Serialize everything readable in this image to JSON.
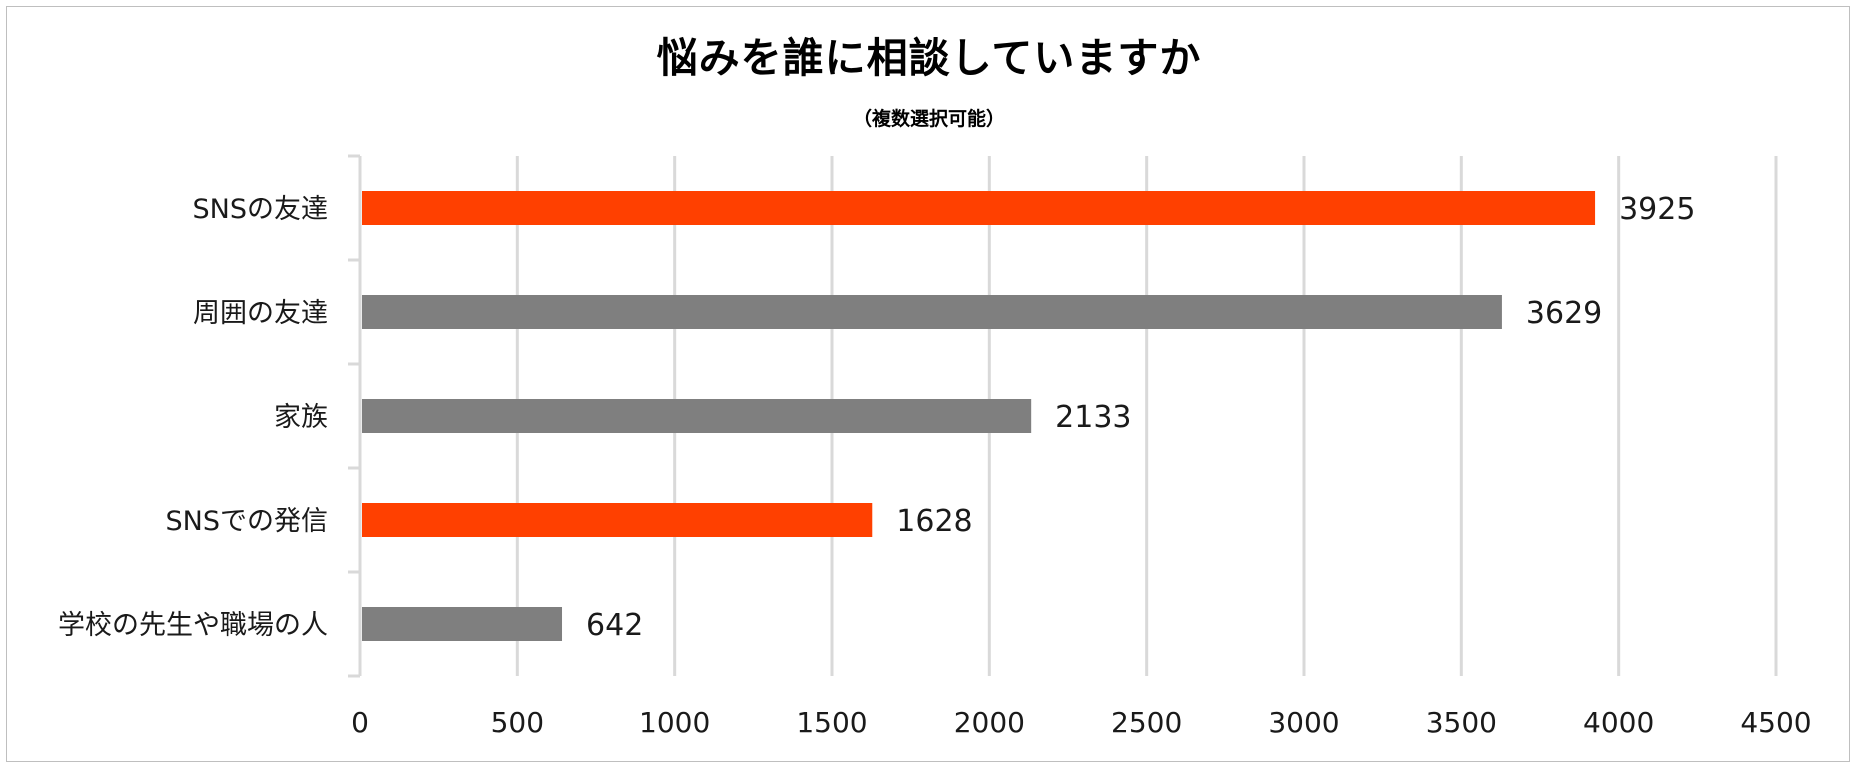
{
  "chart_data": {
    "type": "bar",
    "orientation": "horizontal",
    "title": "悩みを誰に相談していますか",
    "subtitle": "（複数選択可能）",
    "categories": [
      "SNSの友達",
      "周囲の友達",
      "家族",
      "SNSでの発信",
      "学校の先生や職場の人"
    ],
    "values": [
      3925,
      3629,
      2133,
      1628,
      642
    ],
    "bar_colors": [
      "#ff4000",
      "#7f7f7f",
      "#7f7f7f",
      "#ff4000",
      "#7f7f7f"
    ],
    "xlim": [
      0,
      4500
    ],
    "xticks": [
      0,
      500,
      1000,
      1500,
      2000,
      2500,
      3000,
      3500,
      4000,
      4500
    ],
    "xlabel": "",
    "ylabel": "",
    "grid": "vertical",
    "data_labels": true,
    "legend": "none"
  },
  "colors": {
    "highlight": "#ff4000",
    "neutral": "#7f7f7f",
    "grid": "#d9d9d9",
    "axis": "#d9d9d9"
  }
}
